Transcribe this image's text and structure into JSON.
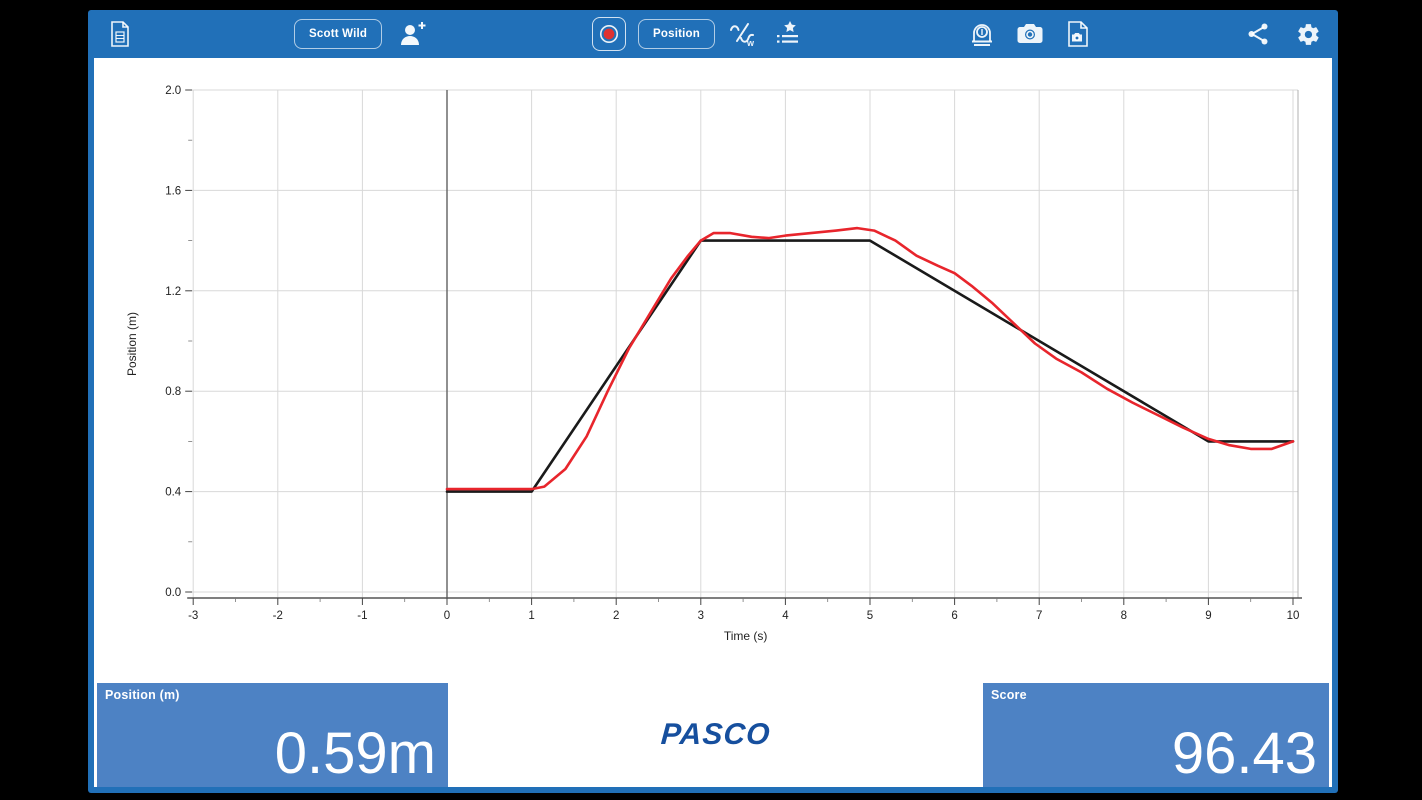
{
  "toolbar": {
    "user_button_label": "Scott Wild",
    "position_button_label": "Position",
    "icons": [
      "document-icon",
      "add-user-icon",
      "record-icon",
      "waveform-icon",
      "starred-list-icon",
      "motion-sensor-icon",
      "camera-icon",
      "document-camera-icon",
      "share-icon",
      "gear-icon"
    ]
  },
  "displays": {
    "position_label": "Position (m)",
    "position_value": "0.59m",
    "score_label": "Score",
    "score_value": "96.43",
    "brand": "PASCO"
  },
  "colors": {
    "chrome": "#2170b8",
    "panel": "#4d82c4",
    "grid": "#d8d8d8",
    "axis": "#555555",
    "tick_label": "#222222",
    "brand_text": "#164f9e",
    "record_dot": "#e03131"
  },
  "chart_data": {
    "type": "line",
    "title": "",
    "xlabel": "Time (s)",
    "ylabel": "Position (m)",
    "xlim": [
      -3,
      10
    ],
    "ylim": [
      0.0,
      2.0
    ],
    "xticks": [
      -3,
      -2,
      -1,
      0,
      1,
      2,
      3,
      4,
      5,
      6,
      7,
      8,
      9,
      10
    ],
    "yticks": [
      0.0,
      0.4,
      0.8,
      1.2,
      1.6,
      2.0
    ],
    "grid": true,
    "legend": false,
    "series": [
      {
        "name": "target-path",
        "color": "#1a1a1a",
        "width": 2.6,
        "points": [
          [
            0,
            0.4
          ],
          [
            1,
            0.4
          ],
          [
            3,
            1.4
          ],
          [
            5,
            1.4
          ],
          [
            9,
            0.6
          ],
          [
            10,
            0.6
          ]
        ]
      },
      {
        "name": "recorded-position",
        "color": "#e8252c",
        "width": 2.6,
        "points": [
          [
            0,
            0.41
          ],
          [
            0.5,
            0.41
          ],
          [
            1.0,
            0.41
          ],
          [
            1.15,
            0.42
          ],
          [
            1.4,
            0.49
          ],
          [
            1.65,
            0.62
          ],
          [
            1.9,
            0.8
          ],
          [
            2.15,
            0.97
          ],
          [
            2.4,
            1.11
          ],
          [
            2.65,
            1.25
          ],
          [
            2.85,
            1.34
          ],
          [
            3.0,
            1.4
          ],
          [
            3.15,
            1.43
          ],
          [
            3.35,
            1.43
          ],
          [
            3.6,
            1.415
          ],
          [
            3.8,
            1.41
          ],
          [
            4.0,
            1.42
          ],
          [
            4.3,
            1.43
          ],
          [
            4.6,
            1.44
          ],
          [
            4.85,
            1.45
          ],
          [
            5.05,
            1.44
          ],
          [
            5.3,
            1.4
          ],
          [
            5.55,
            1.34
          ],
          [
            5.8,
            1.3
          ],
          [
            6.0,
            1.27
          ],
          [
            6.2,
            1.22
          ],
          [
            6.45,
            1.15
          ],
          [
            6.7,
            1.07
          ],
          [
            6.95,
            0.99
          ],
          [
            7.2,
            0.93
          ],
          [
            7.5,
            0.875
          ],
          [
            7.8,
            0.81
          ],
          [
            8.1,
            0.755
          ],
          [
            8.4,
            0.705
          ],
          [
            8.7,
            0.655
          ],
          [
            9.0,
            0.61
          ],
          [
            9.25,
            0.585
          ],
          [
            9.5,
            0.57
          ],
          [
            9.75,
            0.57
          ],
          [
            10,
            0.6
          ]
        ]
      }
    ]
  }
}
